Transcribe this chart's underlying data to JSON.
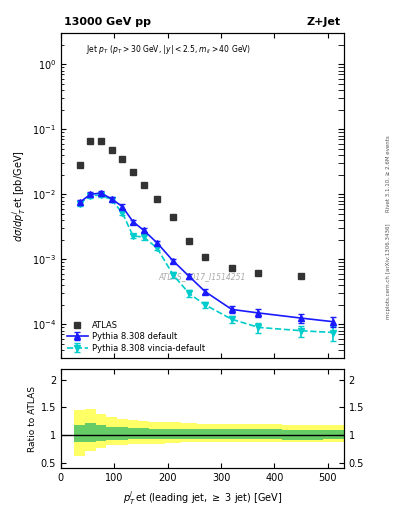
{
  "title_left": "13000 GeV pp",
  "title_right": "Z+Jet",
  "watermark": "ATLAS_2017_I1514251",
  "rivet_label": "Rivet 3.1.10, ≥ 2.6M events",
  "mcplots_label": "mcplots.cern.ch [arXiv:1306.3436]",
  "ylabel_ratio": "Ratio to ATLAS",
  "xlim": [
    0,
    530
  ],
  "ylim_main": [
    3e-05,
    3.0
  ],
  "ylim_ratio": [
    0.4,
    2.2
  ],
  "atlas_x": [
    35,
    55,
    75,
    95,
    115,
    135,
    155,
    180,
    210,
    240,
    270,
    320,
    370,
    450
  ],
  "atlas_y": [
    0.028,
    0.065,
    0.065,
    0.048,
    0.035,
    0.022,
    0.014,
    0.0086,
    0.0045,
    0.0019,
    0.0011,
    0.00074,
    0.00062,
    0.00055
  ],
  "pythia_x": [
    35,
    55,
    75,
    95,
    115,
    135,
    155,
    180,
    210,
    240,
    270,
    320,
    370,
    450,
    510
  ],
  "pythia_y": [
    0.0075,
    0.01,
    0.0105,
    0.0085,
    0.0065,
    0.0038,
    0.0028,
    0.0018,
    0.00095,
    0.00055,
    0.00032,
    0.00017,
    0.00015,
    0.000125,
    0.00011
  ],
  "pythia_yerr": [
    0.0006,
    0.0007,
    0.0007,
    0.0006,
    0.0005,
    0.0003,
    0.0002,
    0.00015,
    8e-05,
    5e-05,
    3e-05,
    2e-05,
    2e-05,
    2e-05,
    2e-05
  ],
  "vincia_x": [
    35,
    55,
    75,
    95,
    115,
    135,
    155,
    180,
    210,
    240,
    270,
    320,
    370,
    450,
    510
  ],
  "vincia_y": [
    0.0072,
    0.0095,
    0.0098,
    0.0082,
    0.0052,
    0.0023,
    0.0022,
    0.0015,
    0.00058,
    0.0003,
    0.0002,
    0.00012,
    9e-05,
    8e-05,
    7.5e-05
  ],
  "vincia_yerr": [
    0.0006,
    0.0007,
    0.0007,
    0.0006,
    0.0004,
    0.0002,
    0.0002,
    0.00013,
    6e-05,
    4e-05,
    2e-05,
    1.5e-05,
    1.5e-05,
    1.5e-05,
    2e-05
  ],
  "ratio_x_edges": [
    25,
    45,
    65,
    85,
    105,
    125,
    145,
    165,
    195,
    225,
    255,
    295,
    345,
    415,
    490,
    530
  ],
  "green_lo": [
    0.87,
    0.88,
    0.9,
    0.92,
    0.91,
    0.93,
    0.93,
    0.93,
    0.93,
    0.93,
    0.93,
    0.93,
    0.93,
    0.92,
    0.93
  ],
  "green_hi": [
    1.18,
    1.22,
    1.18,
    1.15,
    1.14,
    1.13,
    1.13,
    1.12,
    1.12,
    1.12,
    1.12,
    1.12,
    1.11,
    1.1,
    1.1
  ],
  "yellow_lo": [
    0.62,
    0.72,
    0.77,
    0.82,
    0.82,
    0.84,
    0.85,
    0.85,
    0.86,
    0.87,
    0.87,
    0.87,
    0.87,
    0.87,
    0.88
  ],
  "yellow_hi": [
    1.45,
    1.48,
    1.38,
    1.32,
    1.3,
    1.28,
    1.26,
    1.24,
    1.23,
    1.22,
    1.21,
    1.2,
    1.2,
    1.18,
    1.18
  ],
  "atlas_color": "#333333",
  "pythia_color": "#1a1aff",
  "vincia_color": "#00cccc",
  "green_color": "#66cc66",
  "yellow_color": "#ffff66"
}
